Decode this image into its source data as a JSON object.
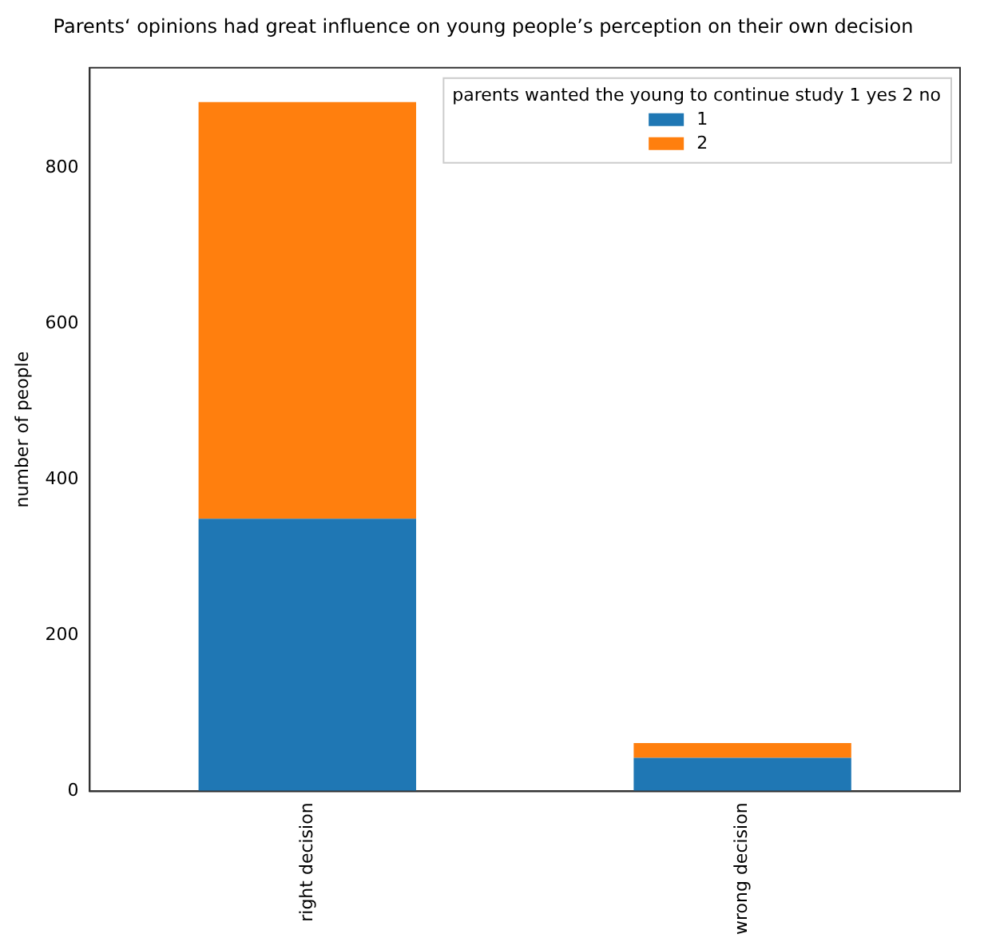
{
  "chart_data": {
    "type": "bar",
    "title": "Parents‘ opinions had great influence on young people’s perception on their own decision",
    "ylabel": "number of people",
    "categories": [
      "right decision",
      "wrong decision"
    ],
    "series": [
      {
        "name": "1",
        "color": "#1f77b4",
        "values": [
          350,
          43
        ]
      },
      {
        "name": "2",
        "color": "#ff7f0e",
        "values": [
          535,
          19
        ]
      }
    ],
    "stacked": true,
    "ylim": [
      0,
      929
    ],
    "yticks": [
      0,
      200,
      400,
      600,
      800
    ],
    "grid": false,
    "legend": "top right",
    "legend_title": "parents wanted the young to continue study 1 yes 2 no"
  }
}
